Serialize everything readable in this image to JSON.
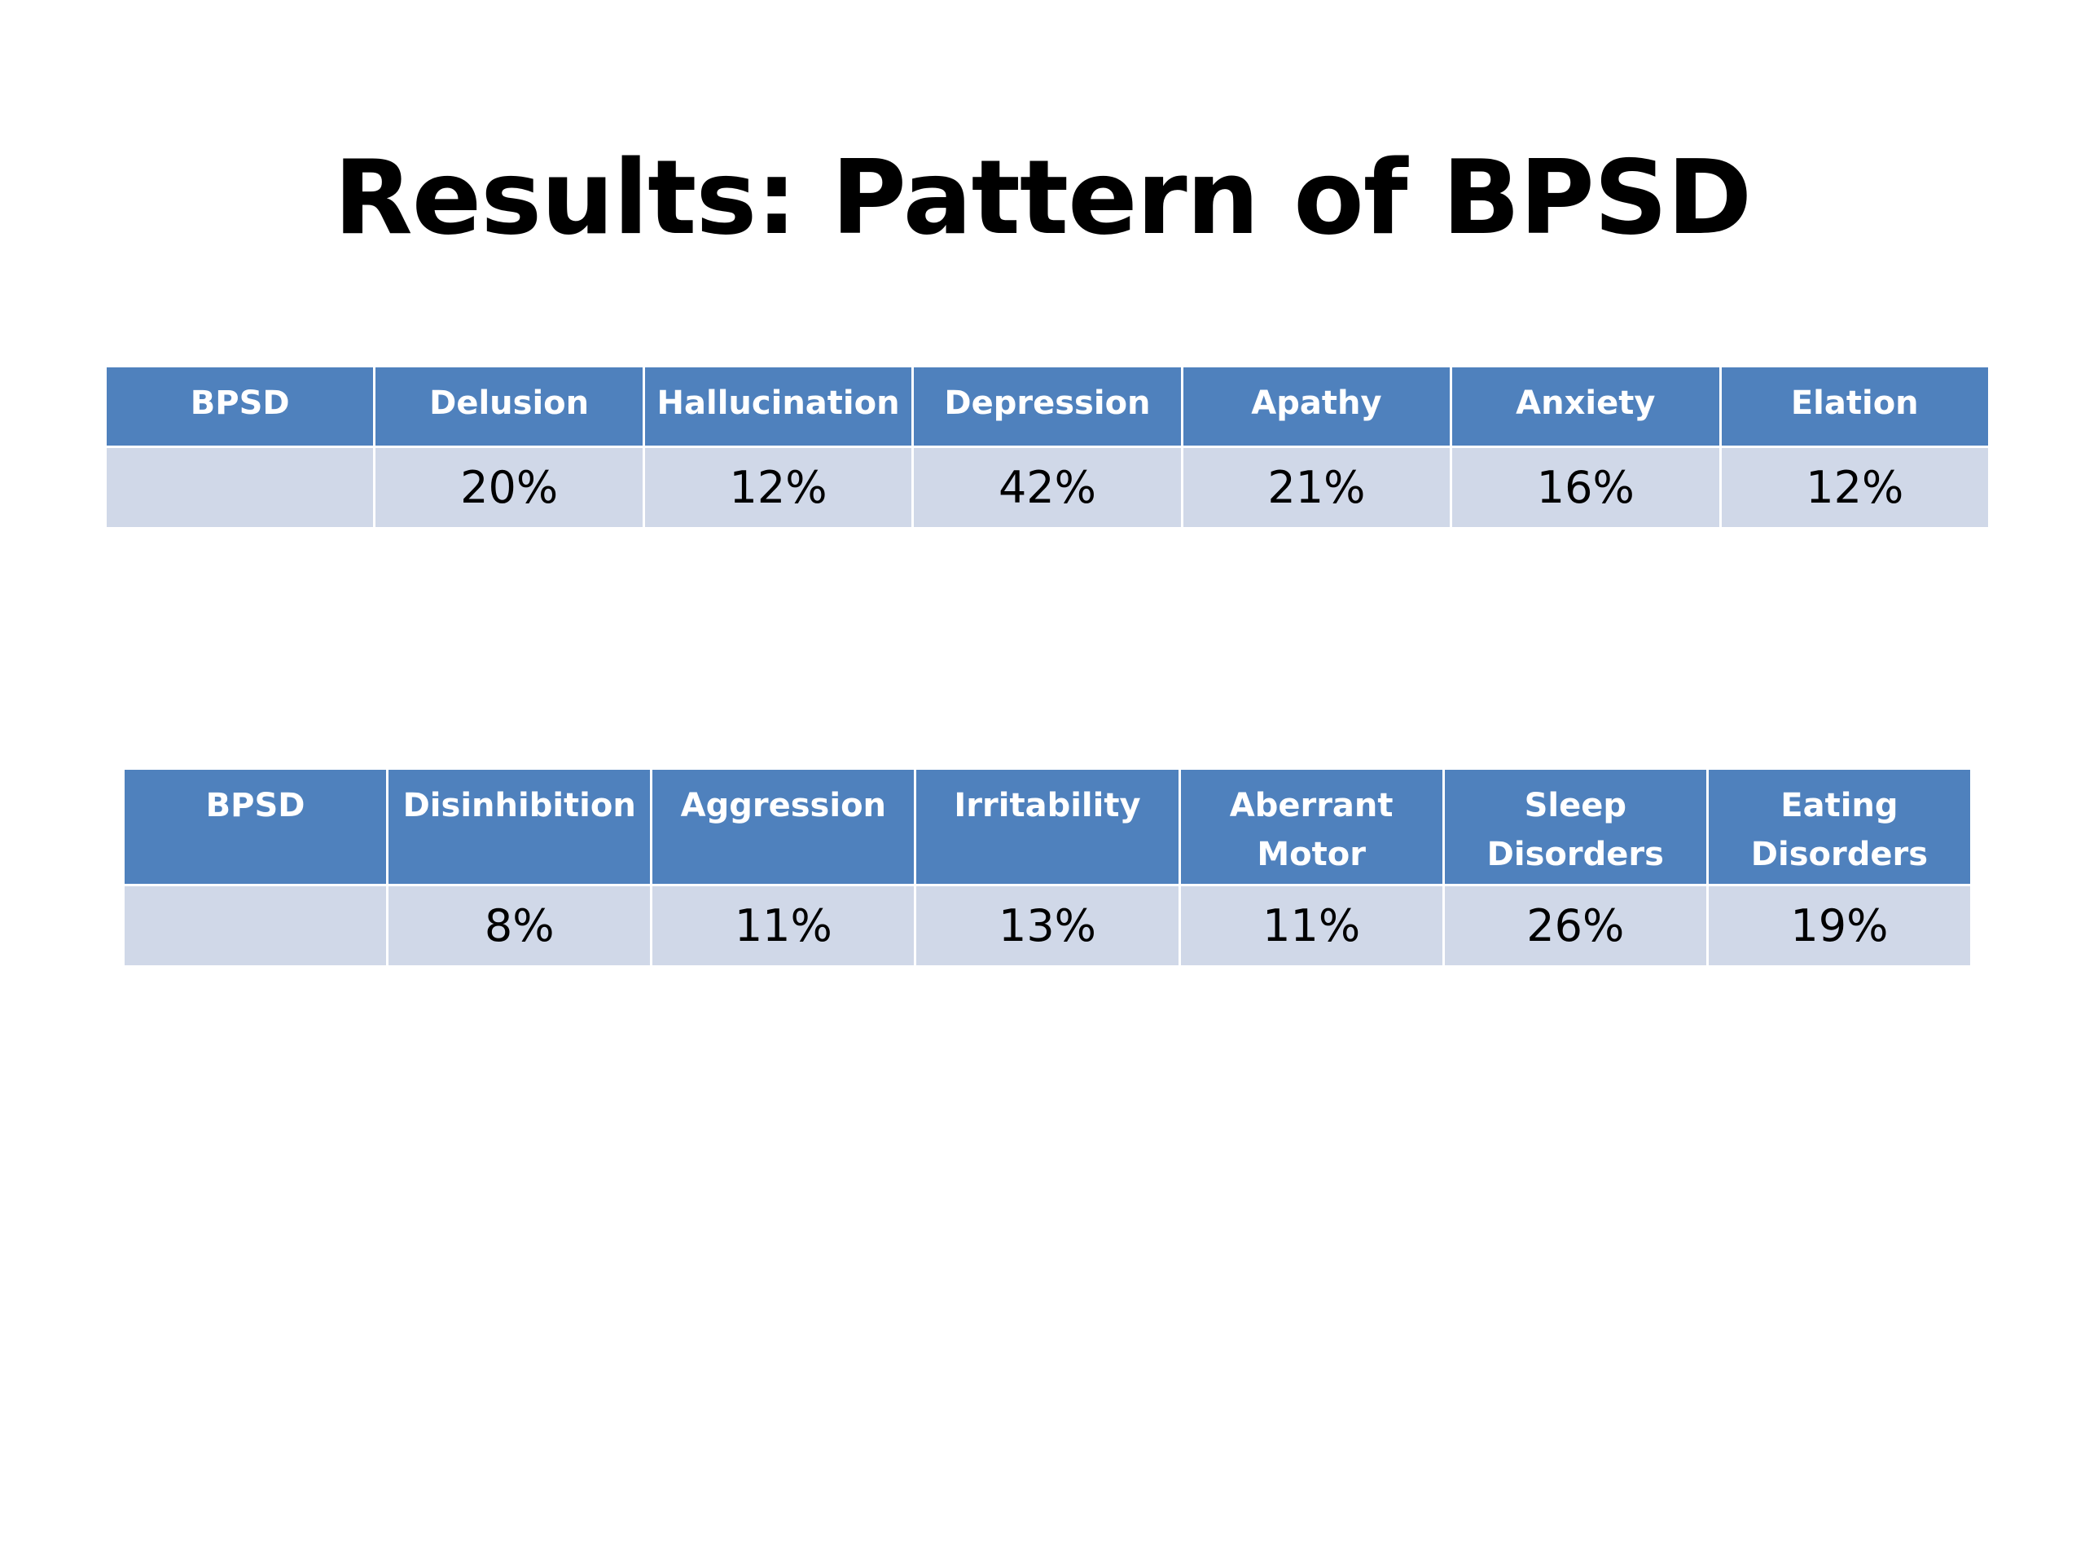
{
  "title": "Results: Pattern of BPSD",
  "table1": {
    "headers": [
      "BPSD",
      "Delusion",
      "Hallucination",
      "Depression",
      "Apathy",
      "Anxiety",
      "Elation"
    ],
    "values": [
      "",
      "20%",
      "12%",
      "42%",
      "21%",
      "16%",
      "12%"
    ]
  },
  "table2": {
    "headers": [
      "BPSD",
      "Disinhibition",
      "Aggression",
      "Irritability",
      "Aberrant Motor",
      "Sleep Disorders",
      "Eating Disorders"
    ],
    "values": [
      "",
      "8%",
      "11%",
      "13%",
      "11%",
      "26%",
      "19%"
    ]
  },
  "colors": {
    "header_bg": "#4f81bd",
    "row_bg": "#d0d8e8",
    "header_text": "#ffffff",
    "body_text": "#000000"
  }
}
